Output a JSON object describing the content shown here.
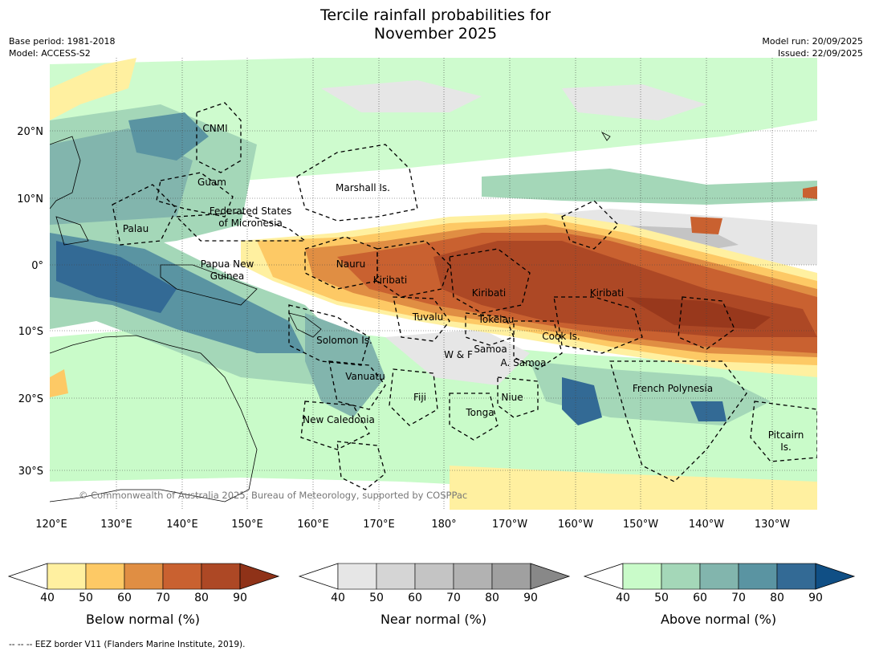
{
  "title_line1": "Tercile rainfall probabilities for",
  "title_line2": "November 2025",
  "meta_left": [
    "Base period: 1981-2018",
    "Model: ACCESS-S2"
  ],
  "meta_right": [
    "Model run: 20/09/2025",
    "Issued: 22/09/2025"
  ],
  "copyright": "© Commonwealth of Australia 2025, Bureau of Meteorology, supported by COSPPac",
  "lon_labels": [
    "120°E",
    "130°E",
    "140°E",
    "150°E",
    "160°E",
    "170°E",
    "180°",
    "170°W",
    "160°W",
    "150°W",
    "140°W",
    "130°W"
  ],
  "lat_labels": [
    "20°N",
    "10°N",
    "0°",
    "10°S",
    "20°S",
    "30°S"
  ],
  "regions": [
    "CNMI",
    "Guam",
    "Marshall Is.",
    "Federated States",
    "of Micronesia",
    "Palau",
    "Papua New",
    "Guinea",
    "Nauru",
    "Kiribati",
    "Kiribati",
    "Kiribati",
    "Tuvalu",
    "Tokelau",
    "Solomon Is.",
    "Samoa",
    "W & F",
    "A. Samoa",
    "Cook Is.",
    "Vanuatu",
    "Fiji",
    "Niue",
    "French Polynesia",
    "Tonga",
    "New Caledonia",
    "Pitcairn",
    "Is."
  ],
  "colorbars": [
    {
      "label": "Below normal (%)",
      "ticks": [
        "40",
        "50",
        "60",
        "70",
        "80",
        "90"
      ],
      "colors": [
        "#fff0a0",
        "#fdc965",
        "#e08e43",
        "#c96130",
        "#ad4825",
        "#8f3218"
      ]
    },
    {
      "label": "Near normal (%)",
      "ticks": [
        "40",
        "50",
        "60",
        "70",
        "80",
        "90"
      ],
      "colors": [
        "#e6e6e6",
        "#d5d5d5",
        "#c4c4c4",
        "#b2b2b2",
        "#a0a0a0",
        "#888888"
      ]
    },
    {
      "label": "Above normal (%)",
      "ticks": [
        "40",
        "50",
        "60",
        "70",
        "80",
        "90"
      ],
      "colors": [
        "#c9fbc9",
        "#a4d7b8",
        "#82b5ad",
        "#5a94a2",
        "#336a95",
        "#104f85"
      ]
    }
  ],
  "footnote": "--  --  -- EEZ border V11 (Flanders Marine Institute, 2019)."
}
